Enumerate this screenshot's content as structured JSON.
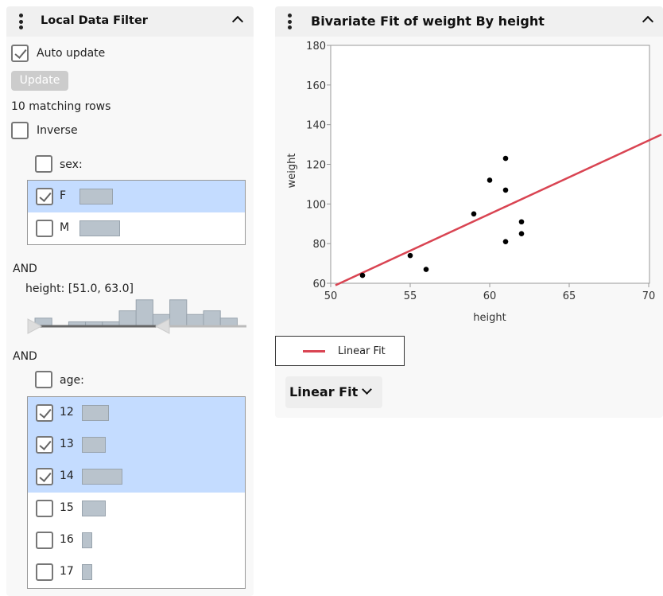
{
  "filter": {
    "title": "Local Data Filter",
    "auto_update_label": "Auto update",
    "auto_update_checked": true,
    "update_button": "Update",
    "matching_rows": "10 matching rows",
    "inverse_label": "Inverse",
    "inverse_checked": false,
    "sex": {
      "label": "sex:",
      "items": [
        {
          "label": "F",
          "count": 18,
          "selected": true
        },
        {
          "label": "M",
          "count": 22,
          "selected": false
        }
      ]
    },
    "and1": "AND",
    "height": {
      "label": "height: [51.0, 63.0]",
      "min": 51.0,
      "max": 63.0,
      "histogram_counts": [
        2,
        0,
        1,
        1,
        1,
        4,
        7,
        3,
        7,
        3,
        4,
        2
      ]
    },
    "and2": "AND",
    "age": {
      "label": "age:",
      "items": [
        {
          "label": "12",
          "count": 8,
          "selected": true
        },
        {
          "label": "13",
          "count": 7,
          "selected": true
        },
        {
          "label": "14",
          "count": 12,
          "selected": true
        },
        {
          "label": "15",
          "count": 7,
          "selected": false
        },
        {
          "label": "16",
          "count": 3,
          "selected": false
        },
        {
          "label": "17",
          "count": 3,
          "selected": false
        }
      ]
    }
  },
  "report": {
    "title": "Bivariate Fit of weight By height",
    "legend_label": "Linear Fit",
    "fit_outline": "Linear Fit"
  },
  "chart_data": {
    "type": "scatter",
    "xlabel": "height",
    "ylabel": "weight",
    "xlim": [
      50,
      71
    ],
    "ylim": [
      60,
      180
    ],
    "xticks": [
      50,
      55,
      60,
      65,
      70
    ],
    "yticks": [
      60,
      80,
      100,
      120,
      140,
      160,
      180
    ],
    "points": [
      [
        52,
        64
      ],
      [
        55,
        74
      ],
      [
        56,
        67
      ],
      [
        59,
        95
      ],
      [
        60,
        112
      ],
      [
        61,
        123
      ],
      [
        61,
        107
      ],
      [
        61,
        81
      ],
      [
        62,
        91
      ],
      [
        62,
        85
      ]
    ],
    "fit_line": {
      "name": "Linear Fit",
      "x": [
        50.3,
        70.8
      ],
      "y": [
        59,
        135
      ],
      "color": "#d94452"
    }
  }
}
